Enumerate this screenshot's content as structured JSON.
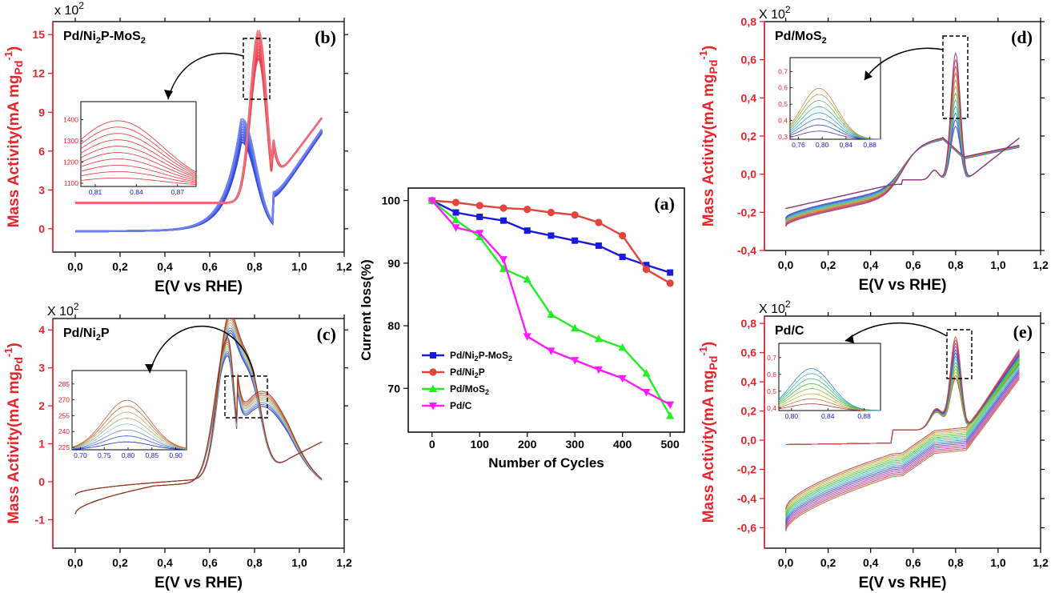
{
  "chart_data": [
    {
      "id": "a",
      "type": "line",
      "panel_label": "(a)",
      "xlabel": "Number of Cycles",
      "ylabel": "Current loss(%)",
      "xlim": [
        -50,
        530
      ],
      "ylim": [
        63,
        102
      ],
      "xticks": [
        0,
        100,
        200,
        300,
        400,
        500
      ],
      "yticks": [
        70,
        80,
        90,
        100
      ],
      "x": [
        0,
        50,
        100,
        150,
        200,
        250,
        300,
        350,
        400,
        450,
        500
      ],
      "series": [
        {
          "name": "Pd/Ni₂P-MoS₂",
          "color": "#1a1adf",
          "marker": "square",
          "values": [
            100,
            98.1,
            97.4,
            96.8,
            95.2,
            94.4,
            93.6,
            92.8,
            91.0,
            89.7,
            88.5
          ]
        },
        {
          "name": "Pd/Ni₂P",
          "color": "#e2453c",
          "marker": "circle",
          "values": [
            100,
            99.7,
            99.2,
            98.8,
            98.6,
            98.1,
            97.7,
            96.5,
            94.4,
            89.0,
            86.8
          ]
        },
        {
          "name": "Pd/MoS₂",
          "color": "#22ee22",
          "marker": "triangle-up",
          "values": [
            100,
            96.9,
            94.2,
            89.1,
            87.4,
            81.8,
            79.6,
            77.9,
            76.5,
            72.4,
            65.6
          ]
        },
        {
          "name": "Pd/C",
          "color": "#ff1aff",
          "marker": "triangle-down",
          "values": [
            100,
            95.7,
            94.8,
            90.6,
            78.3,
            76.0,
            74.5,
            73.0,
            71.6,
            69.4,
            67.4
          ]
        }
      ],
      "legend_position": "lower-left"
    },
    {
      "id": "b",
      "type": "line",
      "panel_label": "(b)",
      "material": "Pd/Ni₂P-MoS₂",
      "xlabel": "E(V vs RHE)",
      "ylabel": "Mass Activity(mA mgPd-1)",
      "multiplier": "x 10²",
      "xlim": [
        -0.1,
        1.2
      ],
      "ylim": [
        -1.8,
        16
      ],
      "xticks": [
        "0,0",
        "0,2",
        "0,4",
        "0,6",
        "0,8",
        "1,0",
        "1,2"
      ],
      "yticks": [
        "0",
        "3",
        "6",
        "9",
        "12",
        "15"
      ],
      "peak_positions": [
        0.74,
        0.82
      ],
      "inset": {
        "xticks": [
          "0,81",
          "0,84",
          "0,87"
        ],
        "yticks": [
          "1100",
          "1200",
          "1300",
          "1400"
        ]
      }
    },
    {
      "id": "c",
      "type": "line",
      "panel_label": "(c)",
      "material": "Pd/Ni₂P",
      "xlabel": "E(V vs RHE)",
      "ylabel": "Mass Activity(mA mgPd-1)",
      "multiplier": "X 10²",
      "xlim": [
        -0.1,
        1.2
      ],
      "ylim": [
        -1.75,
        4.3
      ],
      "xticks": [
        "0,0",
        "0,2",
        "0,4",
        "0,6",
        "0,8",
        "1,0",
        "1,2"
      ],
      "yticks": [
        "-1",
        "0",
        "1",
        "2",
        "3",
        "4"
      ],
      "peak_positions": [
        0.68,
        0.78
      ],
      "inset": {
        "xticks": [
          "0,70",
          "0,75",
          "0,80",
          "0,85",
          "0,90"
        ],
        "yticks": [
          "225",
          "240",
          "255",
          "270",
          "285"
        ]
      }
    },
    {
      "id": "d",
      "type": "line",
      "panel_label": "(d)",
      "material": "Pd/MoS₂",
      "xlabel": "E(V vs RHE)",
      "ylabel": "Mass Activity(mA mgPd-1)",
      "multiplier": "X 10²",
      "xlim": [
        -0.1,
        1.2
      ],
      "ylim": [
        -0.4,
        0.8
      ],
      "xticks": [
        "0,0",
        "0,2",
        "0,4",
        "0,6",
        "0,8",
        "1,0",
        "1,2"
      ],
      "yticks": [
        "-0,4",
        "-0,2",
        "0,0",
        "0,2",
        "0,4",
        "0,6",
        "0,8"
      ],
      "peak_positions": [
        0.7,
        0.8
      ],
      "inset": {
        "xticks": [
          "0,76",
          "0,80",
          "0,84",
          "0,88"
        ],
        "yticks": [
          "0,3",
          "0,4",
          "0,5",
          "0,6",
          "0,7"
        ]
      }
    },
    {
      "id": "e",
      "type": "line",
      "panel_label": "(e)",
      "material": "Pd/C",
      "xlabel": "E(V vs RHE)",
      "ylabel": "Mass Activity(mA mgPd-1)",
      "multiplier": "X 10²",
      "xlim": [
        -0.1,
        1.2
      ],
      "ylim": [
        -0.74,
        0.85
      ],
      "xticks": [
        "0,0",
        "0,2",
        "0,4",
        "0,6",
        "0,8",
        "1,0",
        "1,2"
      ],
      "yticks": [
        "-0,6",
        "-0,4",
        "-0,2",
        "0,0",
        "0,2",
        "0,4",
        "0,6",
        "0,8"
      ],
      "peak_positions": [
        0.71,
        0.8
      ],
      "inset": {
        "xticks": [
          "0,80",
          "0,84",
          "0,88"
        ],
        "yticks": [
          "0,4",
          "0,5",
          "0,6",
          "0,7"
        ]
      }
    }
  ]
}
